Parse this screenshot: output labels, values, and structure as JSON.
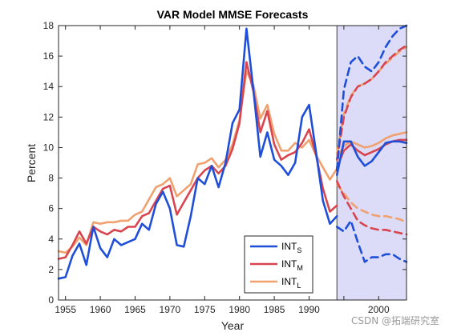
{
  "chart_data": {
    "type": "line",
    "title": "VAR Model MMSE Forecasts",
    "xlabel": "Year",
    "ylabel": "Percent",
    "xlim": [
      1954,
      2004
    ],
    "ylim": [
      0,
      18
    ],
    "xticks": [
      1955,
      1960,
      1965,
      1970,
      1975,
      1980,
      1985,
      1990,
      1995,
      2000
    ],
    "xtick_labels": [
      "1955",
      "1960",
      "1965",
      "1970",
      "1975",
      "1980",
      "1985",
      "1990",
      "",
      "2000"
    ],
    "yticks": [
      0,
      2,
      4,
      6,
      8,
      10,
      12,
      14,
      16,
      18
    ],
    "forecast_region": [
      1994,
      2004
    ],
    "legend": {
      "location": "bottom-center"
    },
    "series": [
      {
        "name": "INT_S",
        "legend_main": "INT",
        "legend_sub": "S",
        "color": "#1f4fd8",
        "x": [
          1954,
          1955,
          1956,
          1957,
          1958,
          1959,
          1960,
          1961,
          1962,
          1963,
          1964,
          1965,
          1966,
          1967,
          1968,
          1969,
          1970,
          1971,
          1972,
          1973,
          1974,
          1975,
          1976,
          1977,
          1978,
          1979,
          1980,
          1981,
          1982,
          1983,
          1984,
          1985,
          1986,
          1987,
          1988,
          1989,
          1990,
          1991,
          1992,
          1993,
          1994
        ],
        "values": [
          1.4,
          1.5,
          2.9,
          3.7,
          2.3,
          4.8,
          3.4,
          2.8,
          4.0,
          3.6,
          3.8,
          4.0,
          5.0,
          4.6,
          6.3,
          7.1,
          6.0,
          3.6,
          3.5,
          5.5,
          8.0,
          7.6,
          8.8,
          7.4,
          9.0,
          11.6,
          12.5,
          17.8,
          13.8,
          9.4,
          11.0,
          9.2,
          8.8,
          8.2,
          9.0,
          12.0,
          12.8,
          9.7,
          6.5,
          5.0,
          5.5
        ]
      },
      {
        "name": "INT_M",
        "legend_main": "INT",
        "legend_sub": "M",
        "color": "#d9454f",
        "x": [
          1954,
          1955,
          1956,
          1957,
          1958,
          1959,
          1960,
          1961,
          1962,
          1963,
          1964,
          1965,
          1966,
          1967,
          1968,
          1969,
          1970,
          1971,
          1972,
          1973,
          1974,
          1975,
          1976,
          1977,
          1978,
          1979,
          1980,
          1981,
          1982,
          1983,
          1984,
          1985,
          1986,
          1987,
          1988,
          1989,
          1990,
          1991,
          1992,
          1993,
          1994
        ],
        "values": [
          2.7,
          2.8,
          3.6,
          4.5,
          3.7,
          4.8,
          4.5,
          4.3,
          4.6,
          4.5,
          4.8,
          4.8,
          5.5,
          5.7,
          6.5,
          7.3,
          7.5,
          5.6,
          6.4,
          7.2,
          8.0,
          8.5,
          8.8,
          8.3,
          8.8,
          9.9,
          11.6,
          15.6,
          13.7,
          11.0,
          12.4,
          10.2,
          9.2,
          9.5,
          9.7,
          10.3,
          11.2,
          9.5,
          7.3,
          5.8,
          6.2
        ]
      },
      {
        "name": "INT_L",
        "legend_main": "INT",
        "legend_sub": "L",
        "color": "#f0a170",
        "x": [
          1954,
          1955,
          1956,
          1957,
          1958,
          1959,
          1960,
          1961,
          1962,
          1963,
          1964,
          1965,
          1966,
          1967,
          1968,
          1969,
          1970,
          1971,
          1972,
          1973,
          1974,
          1975,
          1976,
          1977,
          1978,
          1979,
          1980,
          1981,
          1982,
          1983,
          1984,
          1985,
          1986,
          1987,
          1988,
          1989,
          1990,
          1991,
          1992,
          1993,
          1994
        ],
        "values": [
          3.2,
          3.1,
          3.5,
          4.1,
          3.6,
          5.1,
          5.0,
          5.1,
          5.1,
          5.2,
          5.2,
          5.6,
          5.8,
          6.6,
          7.4,
          7.6,
          8.0,
          6.8,
          7.2,
          7.6,
          8.9,
          9.0,
          9.3,
          8.7,
          9.2,
          10.2,
          11.8,
          15.0,
          14.1,
          11.9,
          12.8,
          10.9,
          9.8,
          9.8,
          10.3,
          10.0,
          10.5,
          9.5,
          8.7,
          7.9,
          8.6
        ]
      }
    ],
    "forecasts": [
      {
        "series": "INT_S",
        "x": [
          1994,
          1995,
          1996,
          1997,
          1998,
          1999,
          2000,
          2001,
          2002,
          2003,
          2004
        ],
        "mean": [
          8.2,
          10.4,
          10.4,
          9.4,
          8.8,
          9.1,
          9.7,
          10.3,
          10.4,
          10.4,
          10.3
        ],
        "upper": [
          8.5,
          13.8,
          15.6,
          16.0,
          15.3,
          15.0,
          15.6,
          16.6,
          17.3,
          17.8,
          18.0
        ],
        "lower": [
          4.8,
          4.5,
          5.2,
          3.8,
          2.5,
          2.8,
          2.8,
          3.0,
          3.0,
          2.7,
          2.5
        ]
      },
      {
        "series": "INT_M",
        "x": [
          1994,
          1995,
          1996,
          1997,
          1998,
          1999,
          2000,
          2001,
          2002,
          2003,
          2004
        ],
        "mean": [
          8.7,
          9.8,
          10.2,
          9.8,
          9.5,
          9.7,
          9.9,
          10.2,
          10.4,
          10.5,
          10.5
        ],
        "upper": [
          9.2,
          12.0,
          13.3,
          14.0,
          14.2,
          14.5,
          15.0,
          15.6,
          16.0,
          16.4,
          16.7
        ],
        "lower": [
          7.8,
          6.8,
          6.0,
          5.2,
          4.9,
          4.7,
          4.6,
          4.6,
          4.5,
          4.4,
          4.3
        ]
      },
      {
        "series": "INT_L",
        "x": [
          1994,
          1995,
          1996,
          1997,
          1998,
          1999,
          2000,
          2001,
          2002,
          2003,
          2004
        ],
        "mean": [
          9.3,
          10.1,
          10.4,
          10.2,
          10.0,
          10.1,
          10.3,
          10.6,
          10.8,
          10.9,
          11.0
        ],
        "upper": [
          9.6,
          12.2,
          13.4,
          14.0,
          14.2,
          14.5,
          15.0,
          15.5,
          15.9,
          16.3,
          16.6
        ],
        "lower": [
          7.6,
          7.0,
          6.4,
          6.0,
          5.8,
          5.6,
          5.5,
          5.5,
          5.4,
          5.3,
          5.1
        ]
      }
    ]
  },
  "watermark": "CSDN @拓端研究室"
}
